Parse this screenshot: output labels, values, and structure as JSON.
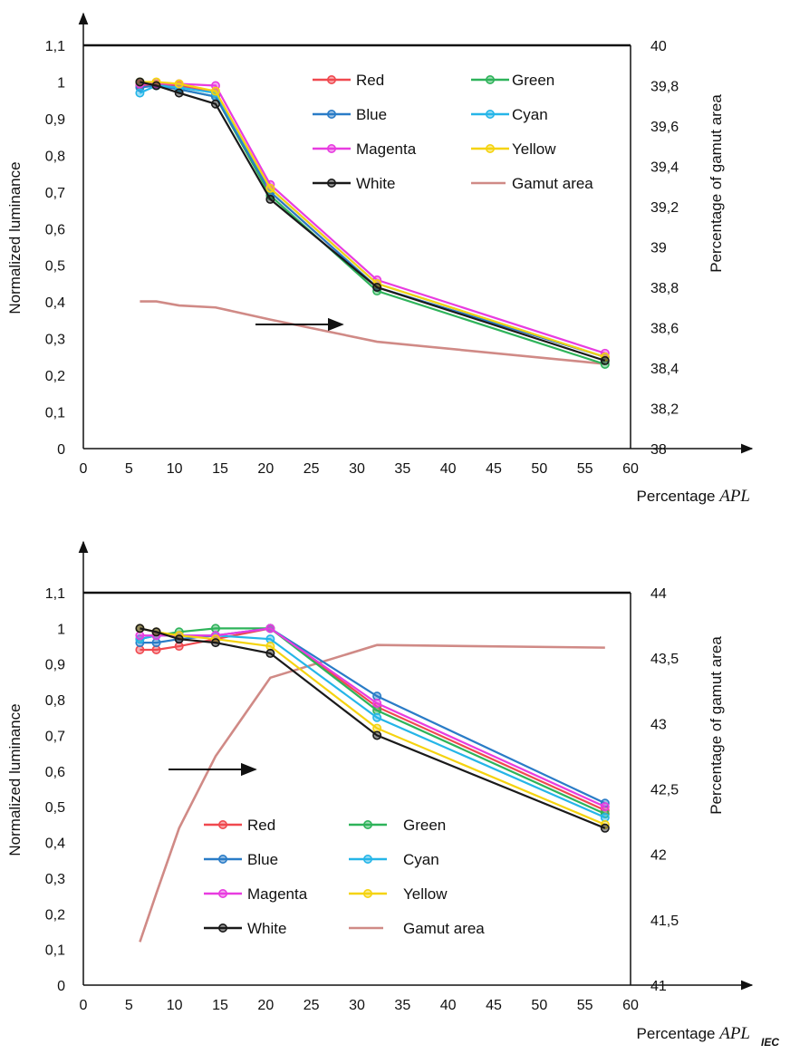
{
  "footer_mark": "IEC",
  "colors": {
    "Red": "#f0494f",
    "Green": "#2eb35a",
    "Blue": "#2a7cc7",
    "Cyan": "#25b5e8",
    "Magenta": "#e83ce0",
    "Yellow": "#f5d30f",
    "White": "#1a1a1a",
    "Gamut area": "#d08a86"
  },
  "chart_data": [
    {
      "type": "line",
      "xlabel_prefix": "Percentage",
      "xlabel_var": "APL",
      "ylabel": "Normalized luminance",
      "y2label": "Percentage of gamut area",
      "xlim": [
        0,
        60
      ],
      "ylim": [
        0,
        1.1
      ],
      "y2lim": [
        38,
        40
      ],
      "xticks": [
        "0",
        "5",
        "10",
        "15",
        "20",
        "25",
        "30",
        "35",
        "40",
        "45",
        "50",
        "55",
        "60"
      ],
      "yticks": [
        "0",
        "0,1",
        "0,2",
        "0,3",
        "0,4",
        "0,5",
        "0,6",
        "0,7",
        "0,8",
        "0,9",
        "1",
        "1,1"
      ],
      "y2ticks": [
        "38",
        "38,2",
        "38,4",
        "38,6",
        "38,8",
        "39",
        "39,2",
        "39,4",
        "39,6",
        "39,8",
        "40"
      ],
      "legend": [
        {
          "name": "Red",
          "style": "marker"
        },
        {
          "name": "Green",
          "style": "marker"
        },
        {
          "name": "Blue",
          "style": "marker"
        },
        {
          "name": "Cyan",
          "style": "marker"
        },
        {
          "name": "Magenta",
          "style": "marker"
        },
        {
          "name": "Yellow",
          "style": "marker"
        },
        {
          "name": "White",
          "style": "marker"
        },
        {
          "name": "Gamut area",
          "style": "line"
        }
      ],
      "legend_placement": "top-right",
      "x": [
        6.2,
        8,
        10.5,
        14.5,
        20.5,
        32.2,
        57.2
      ],
      "series": [
        {
          "name": "Red",
          "values": [
            0.99,
            0.995,
            0.99,
            0.97,
            0.7,
            0.44,
            0.25
          ]
        },
        {
          "name": "Green",
          "values": [
            1.0,
            0.995,
            0.98,
            0.96,
            0.69,
            0.43,
            0.23
          ]
        },
        {
          "name": "Blue",
          "values": [
            0.985,
            0.99,
            0.98,
            0.96,
            0.7,
            0.44,
            0.25
          ]
        },
        {
          "name": "Cyan",
          "values": [
            0.97,
            0.99,
            0.985,
            0.97,
            0.71,
            0.45,
            0.25
          ]
        },
        {
          "name": "Magenta",
          "values": [
            0.995,
            0.995,
            0.995,
            0.99,
            0.72,
            0.46,
            0.26
          ]
        },
        {
          "name": "Yellow",
          "values": [
            1.0,
            1.0,
            0.995,
            0.975,
            0.71,
            0.45,
            0.25
          ]
        },
        {
          "name": "White",
          "values": [
            1.0,
            0.99,
            0.97,
            0.94,
            0.68,
            0.44,
            0.24
          ]
        }
      ],
      "gamut_area": {
        "name": "Gamut area",
        "axis": "right",
        "x": [
          6.2,
          8,
          10.5,
          14.5,
          20.5,
          32.2,
          57.2
        ],
        "values": [
          38.73,
          38.73,
          38.71,
          38.7,
          38.64,
          38.53,
          38.42
        ]
      }
    },
    {
      "type": "line",
      "xlabel_prefix": "Percentage",
      "xlabel_var": "APL",
      "ylabel": "Normalized luminance",
      "y2label": "Percentage of gamut area",
      "xlim": [
        0,
        60
      ],
      "ylim": [
        0,
        1.1
      ],
      "y2lim": [
        41,
        44
      ],
      "xticks": [
        "0",
        "5",
        "10",
        "15",
        "20",
        "25",
        "30",
        "35",
        "40",
        "45",
        "50",
        "55",
        "60"
      ],
      "yticks": [
        "0",
        "0,1",
        "0,2",
        "0,3",
        "0,4",
        "0,5",
        "0,6",
        "0,7",
        "0,8",
        "0,9",
        "1",
        "1,1"
      ],
      "y2ticks": [
        "41",
        "41,5",
        "42",
        "42,5",
        "43",
        "43,5",
        "44"
      ],
      "legend": [
        {
          "name": "Red",
          "style": "marker"
        },
        {
          "name": "Green",
          "style": "marker"
        },
        {
          "name": "Blue",
          "style": "marker"
        },
        {
          "name": "Cyan",
          "style": "marker"
        },
        {
          "name": "Magenta",
          "style": "marker"
        },
        {
          "name": "Yellow",
          "style": "marker"
        },
        {
          "name": "White",
          "style": "marker"
        },
        {
          "name": "Gamut area",
          "style": "line"
        }
      ],
      "legend_placement": "bottom-left",
      "x": [
        6.2,
        8,
        10.5,
        14.5,
        20.5,
        32.2,
        57.2
      ],
      "series": [
        {
          "name": "Red",
          "values": [
            0.94,
            0.94,
            0.95,
            0.97,
            1.0,
            0.78,
            0.49
          ]
        },
        {
          "name": "Green",
          "values": [
            0.97,
            0.98,
            0.99,
            1.0,
            1.0,
            0.77,
            0.48
          ]
        },
        {
          "name": "Blue",
          "values": [
            0.96,
            0.96,
            0.97,
            0.98,
            1.0,
            0.81,
            0.51
          ]
        },
        {
          "name": "Cyan",
          "values": [
            0.97,
            0.98,
            0.98,
            0.98,
            0.97,
            0.75,
            0.47
          ]
        },
        {
          "name": "Magenta",
          "values": [
            0.98,
            0.98,
            0.98,
            0.98,
            1.0,
            0.79,
            0.5
          ]
        },
        {
          "name": "Yellow",
          "values": [
            1.0,
            0.99,
            0.98,
            0.97,
            0.95,
            0.72,
            0.45
          ]
        },
        {
          "name": "White",
          "values": [
            1.0,
            0.99,
            0.97,
            0.96,
            0.93,
            0.7,
            0.44
          ]
        }
      ],
      "gamut_area": {
        "name": "Gamut area",
        "axis": "right",
        "x": [
          6.2,
          8,
          10.5,
          14.5,
          20.5,
          32.2,
          57.2
        ],
        "values": [
          41.33,
          41.7,
          42.2,
          42.75,
          43.35,
          43.6,
          43.58
        ]
      }
    }
  ]
}
